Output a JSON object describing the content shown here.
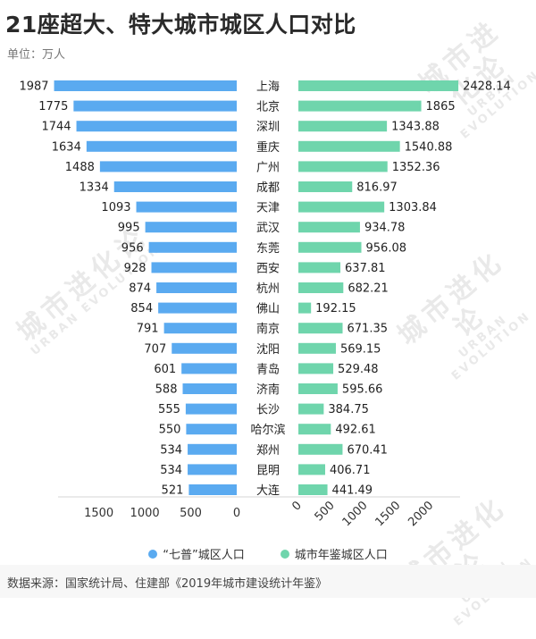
{
  "title": "21座超大、特大城市城区人口对比",
  "unit_label": "单位：万人",
  "source": "数据来源：国家统计局、住建部《2019年城市建设统计年鉴》",
  "watermark": {
    "cn": "城市进化论",
    "en": "URBAN EVOLUTION"
  },
  "colors": {
    "left": "#5aaaf0",
    "right": "#6fd5ac"
  },
  "chart_data": {
    "type": "bar",
    "categories": [
      "上海",
      "北京",
      "深圳",
      "重庆",
      "广州",
      "成都",
      "天津",
      "武汉",
      "东莞",
      "西安",
      "杭州",
      "佛山",
      "南京",
      "沈阳",
      "青岛",
      "济南",
      "长沙",
      "哈尔滨",
      "郑州",
      "昆明",
      "大连"
    ],
    "series": [
      {
        "name": "“七普”城区人口",
        "values": [
          1987,
          1775,
          1744,
          1634,
          1488,
          1334,
          1093,
          995,
          956,
          928,
          874,
          854,
          791,
          707,
          601,
          588,
          555,
          550,
          534,
          534,
          521
        ],
        "labels": [
          "1987",
          "1775",
          "1744",
          "1634",
          "1488",
          "1334",
          "1093",
          "995",
          "956",
          "928",
          "874",
          "854",
          "791",
          "707",
          "601",
          "588",
          "555",
          "550",
          "534",
          "534",
          "521"
        ]
      },
      {
        "name": "城市年鉴城区人口",
        "values": [
          2428.14,
          1865,
          1343.88,
          1540.88,
          1352.36,
          816.97,
          1303.84,
          934.78,
          956.08,
          637.81,
          682.21,
          192.15,
          671.35,
          569.15,
          529.48,
          595.66,
          384.75,
          492.61,
          670.41,
          406.71,
          441.49
        ],
        "labels": [
          "2428.14",
          "1865",
          "1343.88",
          "1540.88",
          "1352.36",
          "816.97",
          "1303.84",
          "934.78",
          "956.08",
          "637.81",
          "682.21",
          "192.15",
          "671.35",
          "569.15",
          "529.48",
          "595.66",
          "384.75",
          "492.61",
          "670.41",
          "406.71",
          "441.49"
        ]
      }
    ],
    "left_axis": {
      "ticks": [
        1500,
        1000,
        500,
        0
      ],
      "tick_labels": [
        "1500",
        "1000",
        "500",
        "0"
      ]
    },
    "right_axis": {
      "ticks": [
        0,
        500,
        1000,
        1500,
        2000
      ],
      "tick_labels": [
        "0",
        "500",
        "1000",
        "1500",
        "2000"
      ]
    },
    "legend_position": "bottom"
  }
}
